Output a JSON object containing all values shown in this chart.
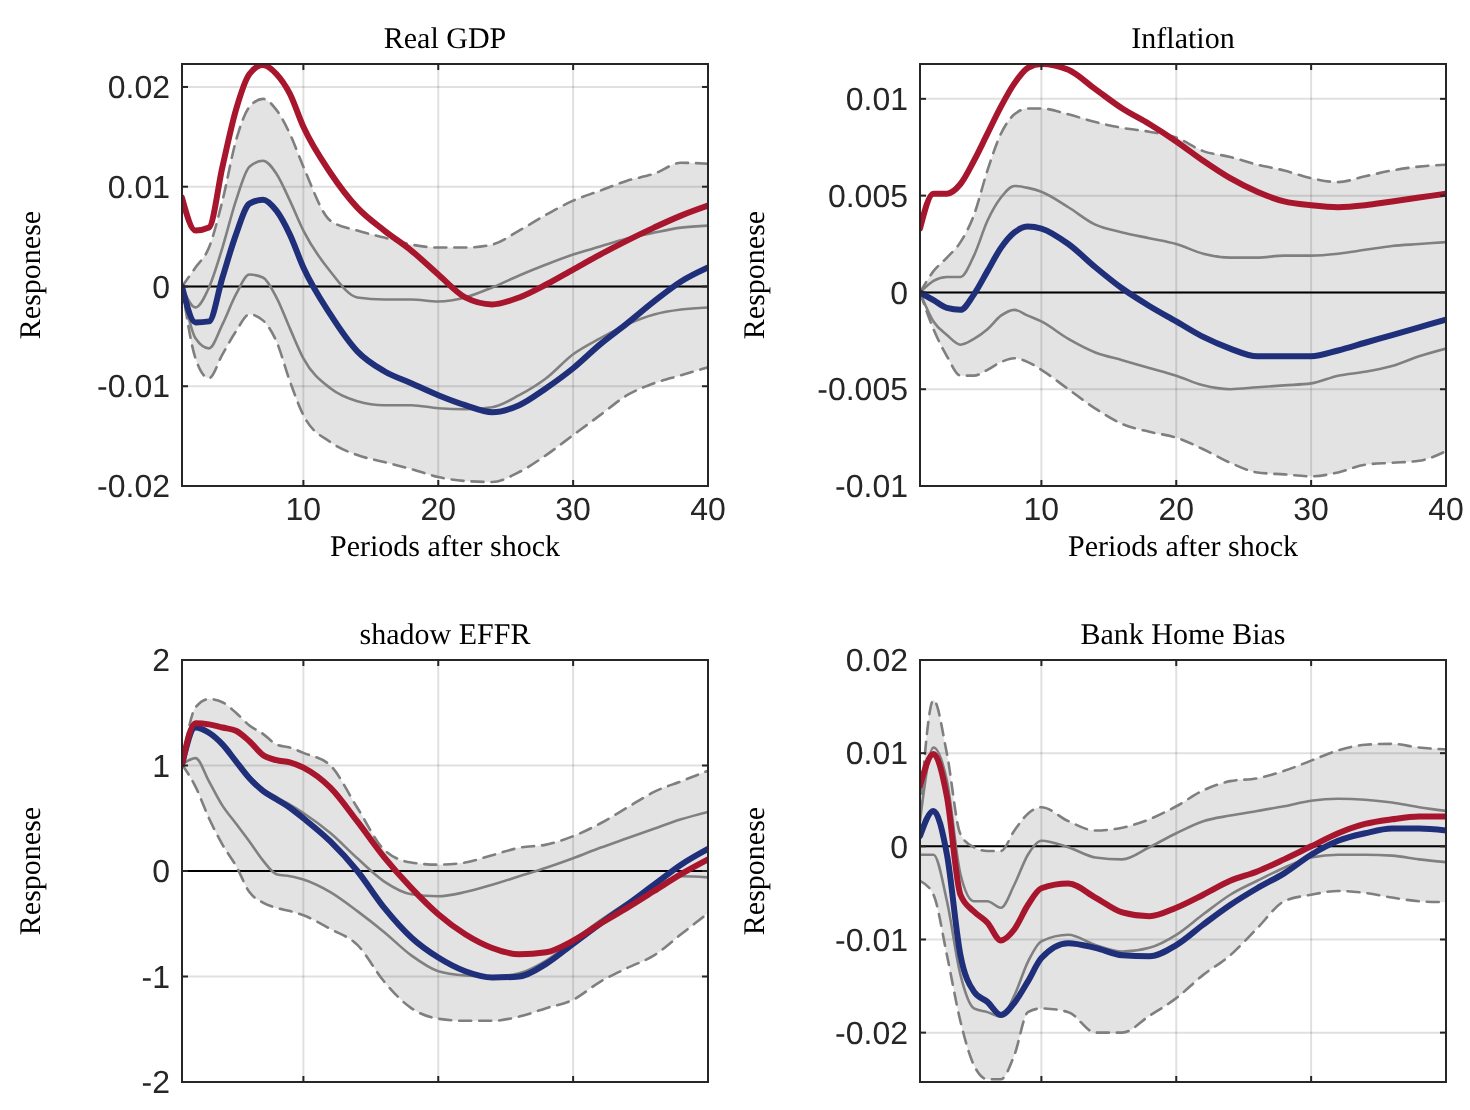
{
  "chart_data": [
    {
      "type": "line",
      "title": "Real GDP",
      "xlabel": "Periods after shock",
      "ylabel": "Responese",
      "x": [
        1,
        2,
        3,
        4,
        5,
        6,
        7,
        8,
        9,
        10,
        12,
        14,
        16,
        18,
        20,
        22,
        24,
        26,
        28,
        30,
        32,
        34,
        36,
        38,
        40
      ],
      "xlim": [
        1,
        40
      ],
      "xticks": [
        10,
        20,
        30,
        40
      ],
      "ylim": [
        -0.02,
        0.0223
      ],
      "yticks": [
        -0.02,
        -0.01,
        0,
        0.01,
        0.02
      ],
      "grid": true,
      "ref_lines": [
        {
          "axis": "y",
          "value": 0,
          "color": "#000000"
        }
      ],
      "series": [
        {
          "color": "#7f7f7f",
          "line_style": "dashed",
          "values": [
            0,
            0.0019,
            0.0039,
            0.0086,
            0.0146,
            0.018,
            0.0188,
            0.0177,
            0.0153,
            0.012,
            0.0066,
            0.0056,
            0.0049,
            0.0042,
            0.0039,
            0.0039,
            0.0042,
            0.0056,
            0.0072,
            0.0086,
            0.0096,
            0.0106,
            0.0113,
            0.0124,
            0.0123
          ]
        },
        {
          "color": "#7f7f7f",
          "line_style": "dashed",
          "values": [
            0,
            -0.0072,
            -0.0092,
            -0.0068,
            -0.0045,
            -0.0028,
            -0.0034,
            -0.0055,
            -0.0095,
            -0.0129,
            -0.0156,
            -0.0169,
            -0.0176,
            -0.0183,
            -0.0191,
            -0.0195,
            -0.0196,
            -0.0186,
            -0.0169,
            -0.0149,
            -0.0129,
            -0.0109,
            -0.0097,
            -0.0089,
            -0.0081
          ]
        },
        {
          "color": "#808080",
          "values": [
            0,
            -0.0021,
            -0.0001,
            0.0039,
            0.0086,
            0.012,
            0.0126,
            0.0113,
            0.0086,
            0.0056,
            0.0015,
            -0.0011,
            -0.0013,
            -0.0013,
            -0.0015,
            -0.0011,
            -0.0001,
            0.0011,
            0.0022,
            0.0032,
            0.004,
            0.0048,
            0.0054,
            0.0059,
            0.0061
          ]
        },
        {
          "color": "#808080",
          "values": [
            0,
            -0.0052,
            -0.0062,
            -0.0038,
            -0.0008,
            0.0012,
            0.0009,
            -0.0011,
            -0.0042,
            -0.0072,
            -0.0102,
            -0.0115,
            -0.0119,
            -0.0119,
            -0.0122,
            -0.0123,
            -0.0121,
            -0.0109,
            -0.0092,
            -0.0068,
            -0.0052,
            -0.0038,
            -0.0028,
            -0.0023,
            -0.0021
          ]
        },
        {
          "color": "#1f2f7a",
          "values": [
            0,
            -0.0036,
            -0.0035,
            0.0009,
            0.0052,
            0.0083,
            0.0087,
            0.0076,
            0.0052,
            0.0019,
            -0.0028,
            -0.0065,
            -0.0085,
            -0.0097,
            -0.0109,
            -0.0119,
            -0.0126,
            -0.0119,
            -0.0102,
            -0.0082,
            -0.0058,
            -0.0037,
            -0.0015,
            0.0005,
            0.0019
          ],
          "upper": [
            0,
            0.0019,
            0.0039,
            0.0086,
            0.0146,
            0.018,
            0.0188,
            0.0177,
            0.0153,
            0.012,
            0.0066,
            0.0056,
            0.0049,
            0.0042,
            0.0039,
            0.0039,
            0.0042,
            0.0056,
            0.0072,
            0.0086,
            0.0096,
            0.0106,
            0.0113,
            0.0124,
            0.0123
          ],
          "lower": [
            0,
            -0.0072,
            -0.0092,
            -0.0068,
            -0.0045,
            -0.0028,
            -0.0034,
            -0.0055,
            -0.0095,
            -0.0129,
            -0.0156,
            -0.0169,
            -0.0176,
            -0.0183,
            -0.0191,
            -0.0195,
            -0.0196,
            -0.0186,
            -0.0169,
            -0.0149,
            -0.0129,
            -0.0109,
            -0.0097,
            -0.0089,
            -0.0081
          ]
        },
        {
          "color": "#a8162e",
          "values": [
            0.0089,
            0.0056,
            0.0059,
            0.012,
            0.0177,
            0.0213,
            0.0222,
            0.0213,
            0.0193,
            0.016,
            0.0114,
            0.0079,
            0.0056,
            0.0036,
            0.0012,
            -0.0011,
            -0.0018,
            -0.0011,
            0.0002,
            0.0017,
            0.0032,
            0.0046,
            0.0059,
            0.0071,
            0.0081
          ]
        }
      ]
    },
    {
      "type": "line",
      "title": "Inflation",
      "xlabel": "Periods after shock",
      "ylabel": "Responese",
      "x": [
        1,
        2,
        3,
        4,
        5,
        6,
        7,
        8,
        9,
        10,
        12,
        14,
        16,
        18,
        20,
        22,
        24,
        26,
        28,
        30,
        32,
        34,
        36,
        38,
        40
      ],
      "xlim": [
        1,
        40
      ],
      "xticks": [
        10,
        20,
        30,
        40
      ],
      "ylim": [
        -0.01,
        0.0118
      ],
      "yticks": [
        -0.01,
        -0.005,
        0,
        0.005,
        0.01
      ],
      "grid": true,
      "ref_lines": [
        {
          "axis": "y",
          "value": 0,
          "color": "#000000"
        }
      ],
      "series": [
        {
          "color": "#7f7f7f",
          "line_style": "dashed",
          "values": [
            0,
            0.0011,
            0.0018,
            0.0026,
            0.004,
            0.0063,
            0.0082,
            0.0092,
            0.0095,
            0.0095,
            0.0092,
            0.0088,
            0.0085,
            0.0083,
            0.008,
            0.0073,
            0.007,
            0.0066,
            0.0063,
            0.0059,
            0.0057,
            0.006,
            0.0063,
            0.0065,
            0.0066
          ]
        },
        {
          "color": "#7f7f7f",
          "line_style": "dashed",
          "values": [
            0,
            -0.0019,
            -0.0033,
            -0.0043,
            -0.0043,
            -0.004,
            -0.0036,
            -0.0034,
            -0.0036,
            -0.004,
            -0.005,
            -0.006,
            -0.0068,
            -0.0072,
            -0.0075,
            -0.0081,
            -0.0088,
            -0.0093,
            -0.0094,
            -0.0095,
            -0.0093,
            -0.0089,
            -0.0088,
            -0.0087,
            -0.0082
          ]
        },
        {
          "color": "#808080",
          "values": [
            0,
            0.0006,
            0.0008,
            0.0008,
            0.0019,
            0.0037,
            0.0049,
            0.0055,
            0.0054,
            0.0052,
            0.0044,
            0.0035,
            0.0031,
            0.0028,
            0.0025,
            0.002,
            0.0018,
            0.0018,
            0.0019,
            0.0019,
            0.002,
            0.0022,
            0.0024,
            0.0025,
            0.0026
          ]
        },
        {
          "color": "#808080",
          "values": [
            0,
            -0.0015,
            -0.0022,
            -0.0027,
            -0.0024,
            -0.0019,
            -0.0012,
            -0.0009,
            -0.0012,
            -0.0015,
            -0.0024,
            -0.0031,
            -0.0035,
            -0.0039,
            -0.0043,
            -0.0048,
            -0.005,
            -0.0049,
            -0.0048,
            -0.0047,
            -0.0043,
            -0.0041,
            -0.0038,
            -0.0033,
            -0.0029
          ]
        },
        {
          "color": "#1f2f7a",
          "values": [
            0,
            -0.0004,
            -0.0008,
            -0.0009,
            -0.0001,
            0.0011,
            0.0023,
            0.0031,
            0.0034,
            0.0033,
            0.0025,
            0.0013,
            0.0002,
            -0.0007,
            -0.0015,
            -0.0023,
            -0.0029,
            -0.0033,
            -0.0033,
            -0.0033,
            -0.003,
            -0.0026,
            -0.0022,
            -0.0018,
            -0.0014
          ],
          "upper": [
            0,
            0.0011,
            0.0018,
            0.0026,
            0.004,
            0.0063,
            0.0082,
            0.0092,
            0.0095,
            0.0095,
            0.0092,
            0.0088,
            0.0085,
            0.0083,
            0.008,
            0.0073,
            0.007,
            0.0066,
            0.0063,
            0.0059,
            0.0057,
            0.006,
            0.0063,
            0.0065,
            0.0066
          ],
          "lower": [
            0,
            -0.0019,
            -0.0033,
            -0.0043,
            -0.0043,
            -0.004,
            -0.0036,
            -0.0034,
            -0.0036,
            -0.004,
            -0.005,
            -0.006,
            -0.0068,
            -0.0072,
            -0.0075,
            -0.0081,
            -0.0088,
            -0.0093,
            -0.0094,
            -0.0095,
            -0.0093,
            -0.0089,
            -0.0088,
            -0.0087,
            -0.0082
          ]
        },
        {
          "color": "#a8162e",
          "values": [
            0.0033,
            0.0051,
            0.0051,
            0.0056,
            0.0068,
            0.0082,
            0.0096,
            0.0108,
            0.0116,
            0.0118,
            0.0115,
            0.0105,
            0.0095,
            0.0087,
            0.0078,
            0.0068,
            0.0059,
            0.0052,
            0.0047,
            0.0045,
            0.0044,
            0.0045,
            0.0047,
            0.0049,
            0.0051
          ]
        }
      ]
    },
    {
      "type": "line",
      "title": "shadow EFFR",
      "ylabel": "Responese",
      "tick_labels": "y",
      "x": [
        1,
        2,
        3,
        4,
        5,
        6,
        7,
        8,
        9,
        10,
        12,
        14,
        16,
        18,
        20,
        22,
        24,
        26,
        28,
        30,
        32,
        34,
        36,
        38,
        40
      ],
      "xlim": [
        1,
        40
      ],
      "xticks": [
        10,
        20,
        30,
        40
      ],
      "ylim": [
        -2,
        2
      ],
      "yticks": [
        -2,
        -1,
        0,
        1,
        2
      ],
      "grid": true,
      "ref_lines": [
        {
          "axis": "y",
          "value": 0,
          "color": "#000000"
        }
      ],
      "series": [
        {
          "color": "#7f7f7f",
          "line_style": "dashed",
          "values": [
            1.01,
            1.55,
            1.63,
            1.6,
            1.5,
            1.38,
            1.3,
            1.2,
            1.17,
            1.12,
            1.0,
            0.6,
            0.2,
            0.08,
            0.06,
            0.08,
            0.15,
            0.22,
            0.25,
            0.33,
            0.45,
            0.6,
            0.75,
            0.85,
            0.95
          ]
        },
        {
          "color": "#7f7f7f",
          "line_style": "dashed",
          "values": [
            1.01,
            0.8,
            0.5,
            0.25,
            0.05,
            -0.2,
            -0.3,
            -0.35,
            -0.38,
            -0.42,
            -0.55,
            -0.7,
            -1.05,
            -1.3,
            -1.4,
            -1.42,
            -1.42,
            -1.38,
            -1.3,
            -1.22,
            -1.05,
            -0.92,
            -0.8,
            -0.6,
            -0.4
          ]
        },
        {
          "color": "#808080",
          "values": [
            1.01,
            1.36,
            1.3,
            1.2,
            1.04,
            0.9,
            0.78,
            0.7,
            0.63,
            0.55,
            0.36,
            0.12,
            -0.1,
            -0.22,
            -0.24,
            -0.2,
            -0.13,
            -0.05,
            0.03,
            0.12,
            0.22,
            0.31,
            0.4,
            0.49,
            0.56
          ]
        },
        {
          "color": "#808080",
          "values": [
            1.01,
            1.07,
            0.85,
            0.62,
            0.45,
            0.28,
            0.1,
            -0.03,
            -0.05,
            -0.08,
            -0.2,
            -0.38,
            -0.58,
            -0.8,
            -0.95,
            -0.99,
            -1.0,
            -0.97,
            -0.85,
            -0.66,
            -0.47,
            -0.3,
            -0.15,
            -0.05,
            -0.06
          ]
        },
        {
          "color": "#1f2f7a",
          "values": [
            1.01,
            1.36,
            1.31,
            1.2,
            1.04,
            0.88,
            0.76,
            0.68,
            0.6,
            0.5,
            0.28,
            0,
            -0.35,
            -0.63,
            -0.82,
            -0.95,
            -1.01,
            -1.0,
            -0.88,
            -0.69,
            -0.5,
            -0.32,
            -0.13,
            0.06,
            0.21
          ],
          "upper": [
            1.01,
            1.55,
            1.63,
            1.6,
            1.5,
            1.38,
            1.3,
            1.2,
            1.17,
            1.12,
            1.0,
            0.6,
            0.2,
            0.08,
            0.06,
            0.08,
            0.15,
            0.22,
            0.25,
            0.33,
            0.45,
            0.6,
            0.75,
            0.85,
            0.95
          ],
          "lower": [
            1.01,
            0.8,
            0.5,
            0.25,
            0.05,
            -0.2,
            -0.3,
            -0.35,
            -0.38,
            -0.42,
            -0.55,
            -0.7,
            -1.05,
            -1.3,
            -1.4,
            -1.42,
            -1.42,
            -1.38,
            -1.3,
            -1.22,
            -1.05,
            -0.92,
            -0.8,
            -0.6,
            -0.4
          ]
        },
        {
          "color": "#a8162e",
          "values": [
            1.01,
            1.4,
            1.39,
            1.36,
            1.33,
            1.23,
            1.1,
            1.05,
            1.03,
            0.98,
            0.79,
            0.47,
            0.13,
            -0.16,
            -0.41,
            -0.6,
            -0.73,
            -0.79,
            -0.77,
            -0.66,
            -0.5,
            -0.35,
            -0.19,
            -0.03,
            0.11
          ]
        }
      ]
    },
    {
      "type": "line",
      "title": "Bank Home Bias",
      "ylabel": "Responese",
      "tick_labels": "y",
      "x": [
        1,
        2,
        3,
        4,
        5,
        6,
        7,
        8,
        9,
        10,
        12,
        14,
        16,
        18,
        20,
        22,
        24,
        26,
        28,
        30,
        32,
        34,
        36,
        38,
        40
      ],
      "xlim": [
        1,
        40
      ],
      "xticks": [
        10,
        20,
        30,
        40
      ],
      "ylim": [
        -0.0253,
        0.02
      ],
      "yticks": [
        -0.02,
        -0.01,
        0,
        0.01,
        0.02
      ],
      "grid": true,
      "ref_lines": [
        {
          "axis": "y",
          "value": 0,
          "color": "#000000"
        }
      ],
      "series": [
        {
          "color": "#7f7f7f",
          "line_style": "dashed",
          "values": [
            0.0035,
            0.0157,
            0.0099,
            0.0013,
            -0.0001,
            -0.0005,
            -0.0005,
            0.0017,
            0.0035,
            0.0042,
            0.0027,
            0.0017,
            0.002,
            0.0029,
            0.0043,
            0.006,
            0.007,
            0.0073,
            0.0081,
            0.0092,
            0.0103,
            0.0109,
            0.011,
            0.0106,
            0.0104
          ]
        },
        {
          "color": "#7f7f7f",
          "line_style": "dashed",
          "values": [
            -0.0037,
            -0.0052,
            -0.0117,
            -0.0188,
            -0.0235,
            -0.025,
            -0.025,
            -0.0224,
            -0.0178,
            -0.0174,
            -0.0178,
            -0.02,
            -0.02,
            -0.0182,
            -0.0163,
            -0.0138,
            -0.0117,
            -0.0088,
            -0.0059,
            -0.0052,
            -0.0048,
            -0.005,
            -0.0055,
            -0.0059,
            -0.006
          ]
        },
        {
          "color": "#808080",
          "values": [
            0.0027,
            0.0106,
            0.007,
            -0.003,
            -0.0059,
            -0.0059,
            -0.0066,
            -0.0041,
            -0.0009,
            0.0006,
            -0.0001,
            -0.0012,
            -0.0014,
            -0.0001,
            0.0014,
            0.0027,
            0.0033,
            0.0038,
            0.0043,
            0.0049,
            0.0051,
            0.005,
            0.0047,
            0.0042,
            0.0038
          ]
        },
        {
          "color": "#808080",
          "values": [
            -0.0009,
            -0.0009,
            -0.0059,
            -0.0138,
            -0.0174,
            -0.0178,
            -0.0183,
            -0.016,
            -0.0124,
            -0.0102,
            -0.0095,
            -0.0106,
            -0.0113,
            -0.0109,
            -0.0095,
            -0.0073,
            -0.0052,
            -0.0037,
            -0.0023,
            -0.0012,
            -0.0009,
            -0.0009,
            -0.001,
            -0.0014,
            -0.0017
          ]
        },
        {
          "color": "#1f2f7a",
          "values": [
            0.0011,
            0.0038,
            -0.0009,
            -0.0117,
            -0.0156,
            -0.0167,
            -0.0181,
            -0.0168,
            -0.0145,
            -0.012,
            -0.0104,
            -0.0109,
            -0.0117,
            -0.0118,
            -0.0106,
            -0.0084,
            -0.0063,
            -0.0045,
            -0.0029,
            -0.0009,
            0.0006,
            0.0014,
            0.0019,
            0.0019,
            0.0017
          ],
          "upper": [
            0.0035,
            0.0157,
            0.0099,
            0.0013,
            -0.0001,
            -0.0005,
            -0.0005,
            0.0017,
            0.0035,
            0.0042,
            0.0027,
            0.0017,
            0.002,
            0.0029,
            0.0043,
            0.006,
            0.007,
            0.0073,
            0.0081,
            0.0092,
            0.0103,
            0.0109,
            0.011,
            0.0106,
            0.0104
          ],
          "lower": [
            -0.0037,
            -0.0052,
            -0.0117,
            -0.0188,
            -0.0235,
            -0.025,
            -0.025,
            -0.0224,
            -0.0178,
            -0.0174,
            -0.0178,
            -0.02,
            -0.02,
            -0.0182,
            -0.0163,
            -0.0138,
            -0.0117,
            -0.0088,
            -0.0059,
            -0.0052,
            -0.0048,
            -0.005,
            -0.0055,
            -0.0059,
            -0.006
          ]
        },
        {
          "color": "#a8162e",
          "values": [
            0.0065,
            0.0099,
            0.0053,
            -0.0052,
            -0.007,
            -0.0082,
            -0.0101,
            -0.0089,
            -0.0063,
            -0.0045,
            -0.004,
            -0.0055,
            -0.0071,
            -0.0075,
            -0.0066,
            -0.0052,
            -0.0037,
            -0.0027,
            -0.0014,
            0,
            0.0014,
            0.0024,
            0.0029,
            0.0032,
            0.0032
          ]
        }
      ]
    }
  ]
}
